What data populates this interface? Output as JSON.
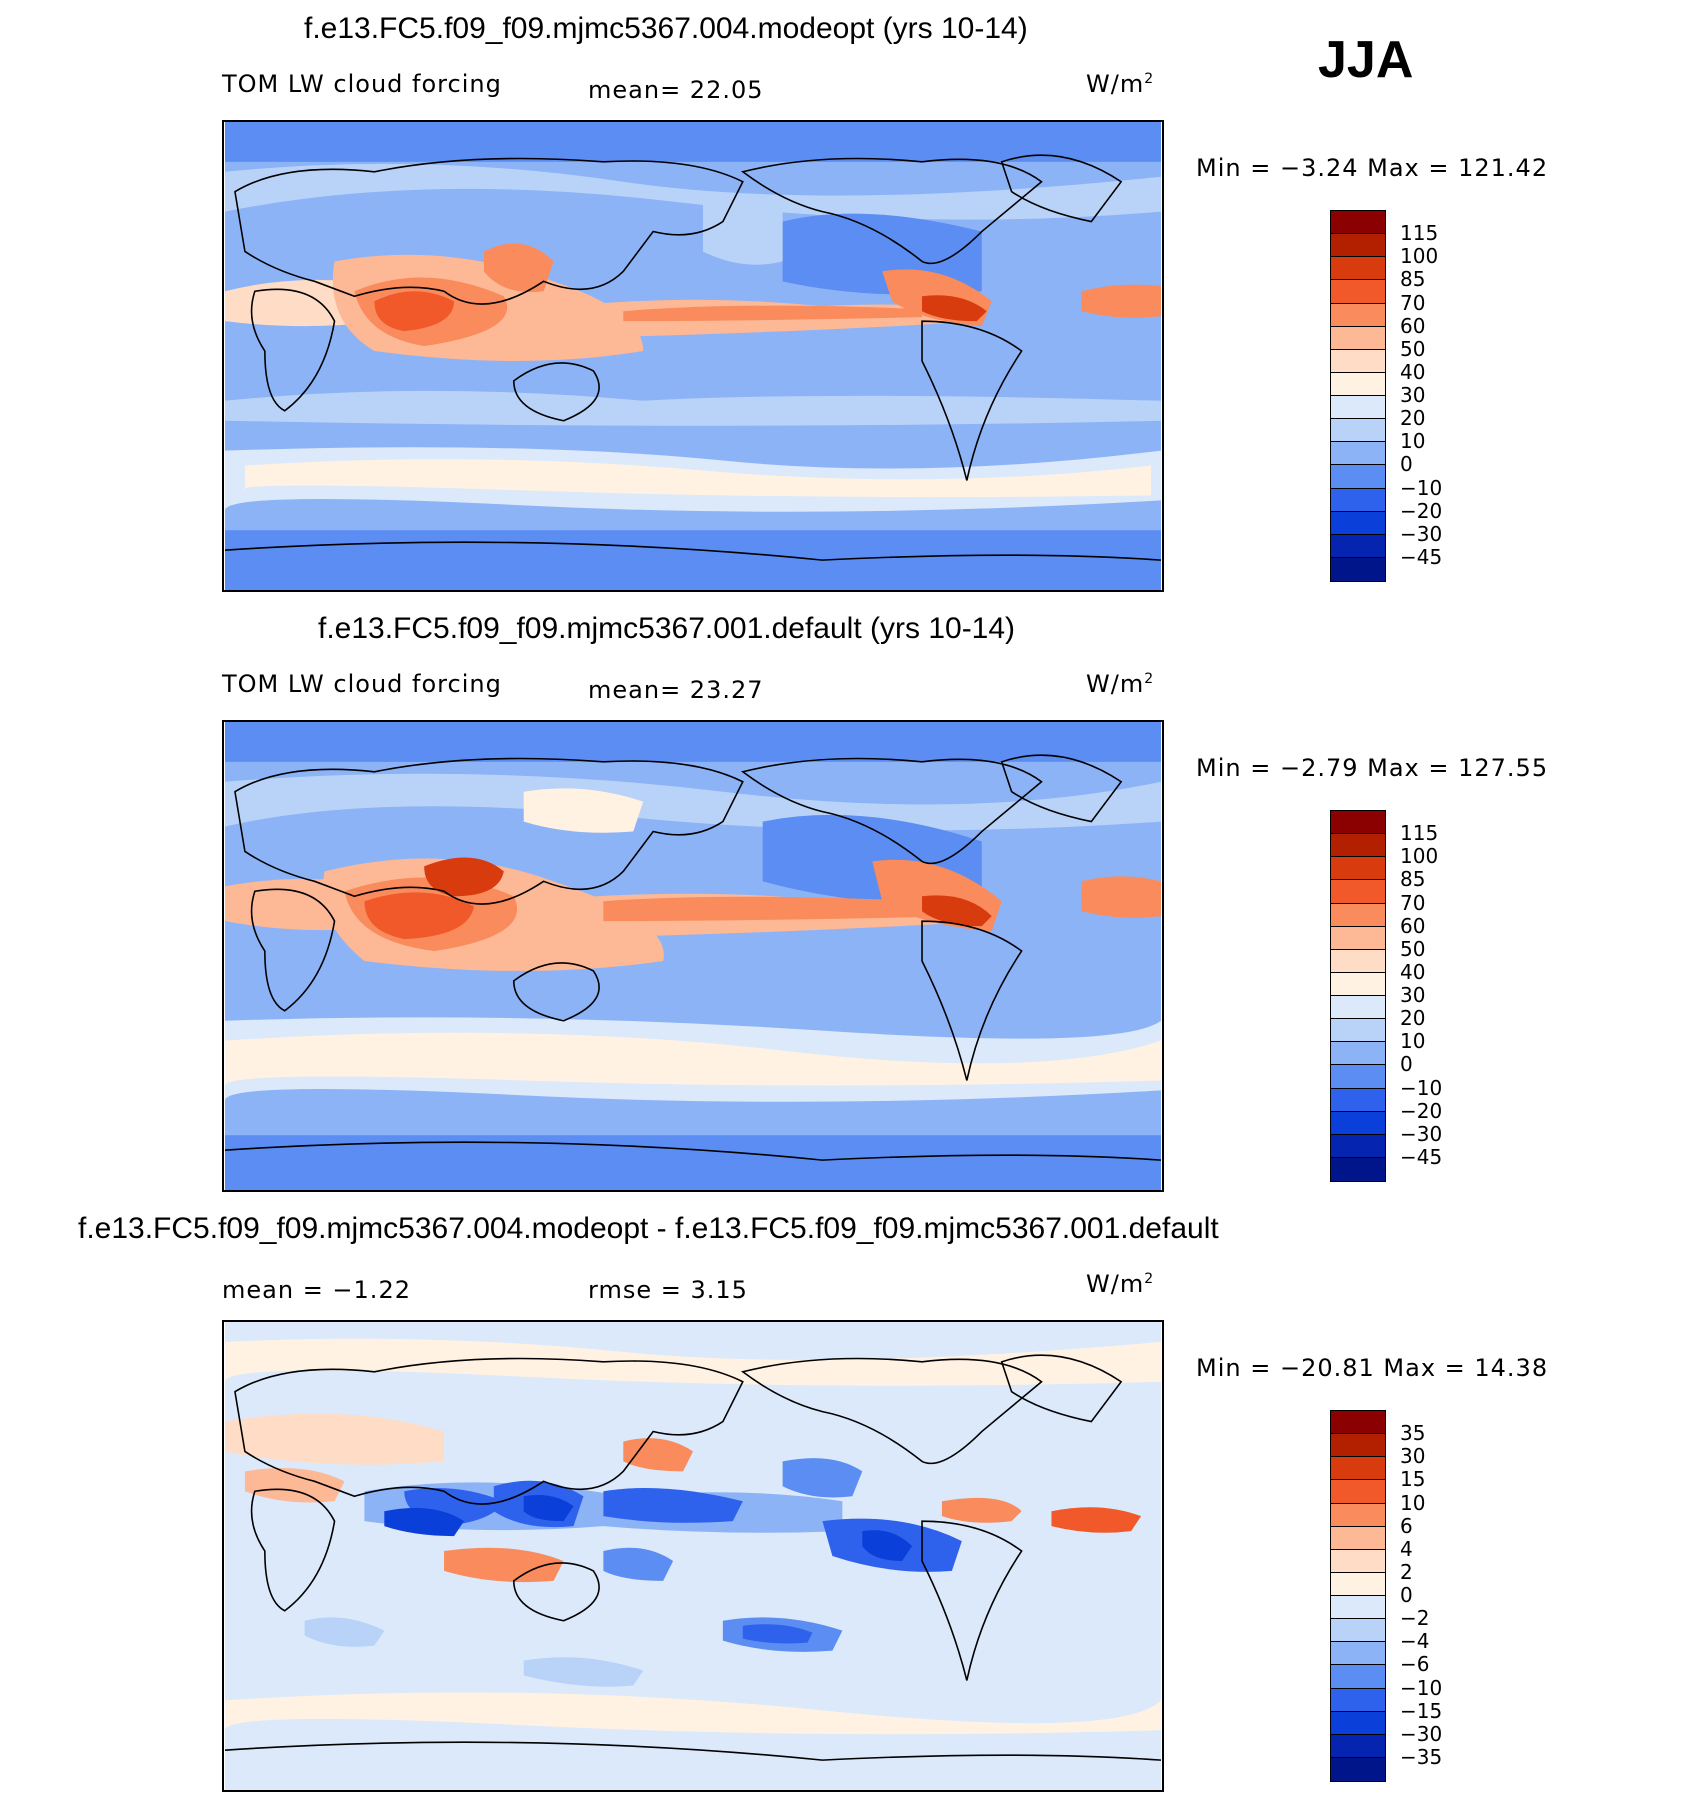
{
  "season": "JJA",
  "chart_data": [
    {
      "type": "heatmap",
      "title": "f.e13.FC5.f09_f09.mjmc5367.004.modeopt (yrs 10-14)",
      "variable": "TOM LW cloud forcing",
      "stat": "mean=  22.05",
      "units": "W/m",
      "units_sup": "2",
      "minmax": "Min =  −3.24 Max = 121.42",
      "min": -3.24,
      "max": 121.42,
      "mean": 22.05,
      "levels": [
        "115",
        "100",
        "85",
        "70",
        "60",
        "50",
        "40",
        "30",
        "20",
        "10",
        "0",
        "−10",
        "−20",
        "−30",
        "−45"
      ],
      "colors": [
        "#8b0000",
        "#b22000",
        "#d83b0e",
        "#f1592a",
        "#f98b5c",
        "#fdb896",
        "#fedcc5",
        "#fff2e3",
        "#dbe9fb",
        "#b9d3f8",
        "#8db3f7",
        "#5b8df2",
        "#2f62ec",
        "#0b3fd9",
        "#0525b0",
        "#00158a"
      ]
    },
    {
      "type": "heatmap",
      "title": "f.e13.FC5.f09_f09.mjmc5367.001.default (yrs 10-14)",
      "variable": "TOM LW cloud forcing",
      "stat": "mean=  23.27",
      "units": "W/m",
      "units_sup": "2",
      "minmax": "Min =  −2.79 Max = 127.55",
      "min": -2.79,
      "max": 127.55,
      "mean": 23.27,
      "levels": [
        "115",
        "100",
        "85",
        "70",
        "60",
        "50",
        "40",
        "30",
        "20",
        "10",
        "0",
        "−10",
        "−20",
        "−30",
        "−45"
      ],
      "colors": [
        "#8b0000",
        "#b22000",
        "#d83b0e",
        "#f1592a",
        "#f98b5c",
        "#fdb896",
        "#fedcc5",
        "#fff2e3",
        "#dbe9fb",
        "#b9d3f8",
        "#8db3f7",
        "#5b8df2",
        "#2f62ec",
        "#0b3fd9",
        "#0525b0",
        "#00158a"
      ]
    },
    {
      "type": "heatmap",
      "title": "f.e13.FC5.f09_f09.mjmc5367.004.modeopt - f.e13.FC5.f09_f09.mjmc5367.001.default",
      "variable": "",
      "stat": "mean =  −1.22",
      "stat2": "rmse =   3.15",
      "units": "W/m",
      "units_sup": "2",
      "minmax": "Min = −20.81 Max =  14.38",
      "min": -20.81,
      "max": 14.38,
      "mean": -1.22,
      "rmse": 3.15,
      "levels": [
        "35",
        "30",
        "15",
        "10",
        "6",
        "4",
        "2",
        "0",
        "−2",
        "−4",
        "−6",
        "−10",
        "−15",
        "−30",
        "−35"
      ],
      "colors": [
        "#8b0000",
        "#b22000",
        "#d83b0e",
        "#f1592a",
        "#f98b5c",
        "#fdb896",
        "#fedcc5",
        "#fff2e3",
        "#dbe9fb",
        "#b9d3f8",
        "#8db3f7",
        "#5b8df2",
        "#2f62ec",
        "#0b3fd9",
        "#0525b0",
        "#00158a"
      ]
    }
  ]
}
